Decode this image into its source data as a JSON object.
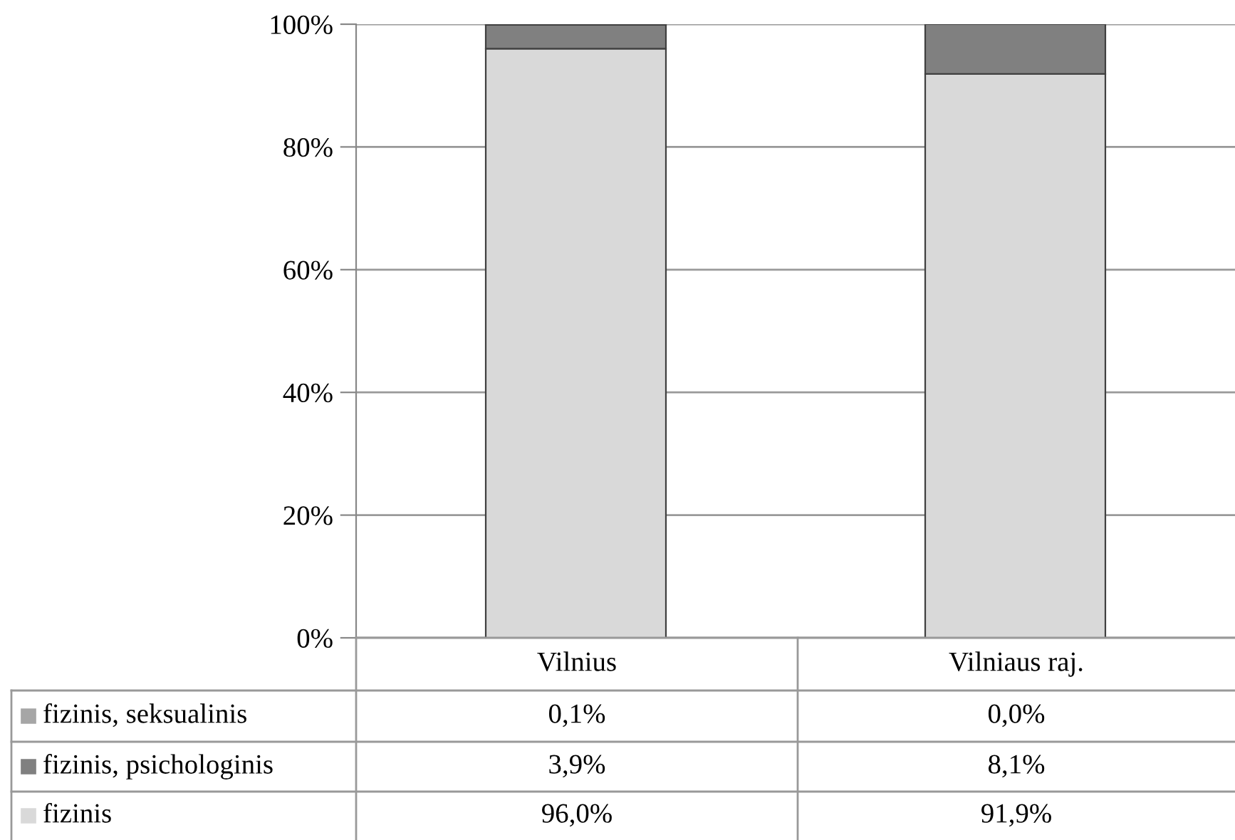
{
  "chart_data": {
    "type": "bar",
    "stacked": true,
    "categories": [
      "Vilnius",
      "Vilniaus raj."
    ],
    "series": [
      {
        "name": "fizinis",
        "color": "#d9d9d9",
        "values": [
          96.0,
          91.9
        ],
        "value_labels": [
          "96,0%",
          "91,9%"
        ]
      },
      {
        "name": "fizinis, psichologinis",
        "color": "#808080",
        "values": [
          3.9,
          8.1
        ],
        "value_labels": [
          "3,9%",
          "8,1%"
        ]
      },
      {
        "name": "fizinis, seksualinis",
        "color": "#a6a6a6",
        "values": [
          0.1,
          0.0
        ],
        "value_labels": [
          "0,1%",
          "0,0%"
        ]
      }
    ],
    "ylim": [
      0,
      100
    ],
    "yticks": [
      {
        "value": 0,
        "label": "0%"
      },
      {
        "value": 20,
        "label": "20%"
      },
      {
        "value": 40,
        "label": "40%"
      },
      {
        "value": 60,
        "label": "60%"
      },
      {
        "value": 80,
        "label": "80%"
      },
      {
        "value": 100,
        "label": "100%"
      }
    ],
    "grid": "y",
    "legend": "bottom left"
  }
}
